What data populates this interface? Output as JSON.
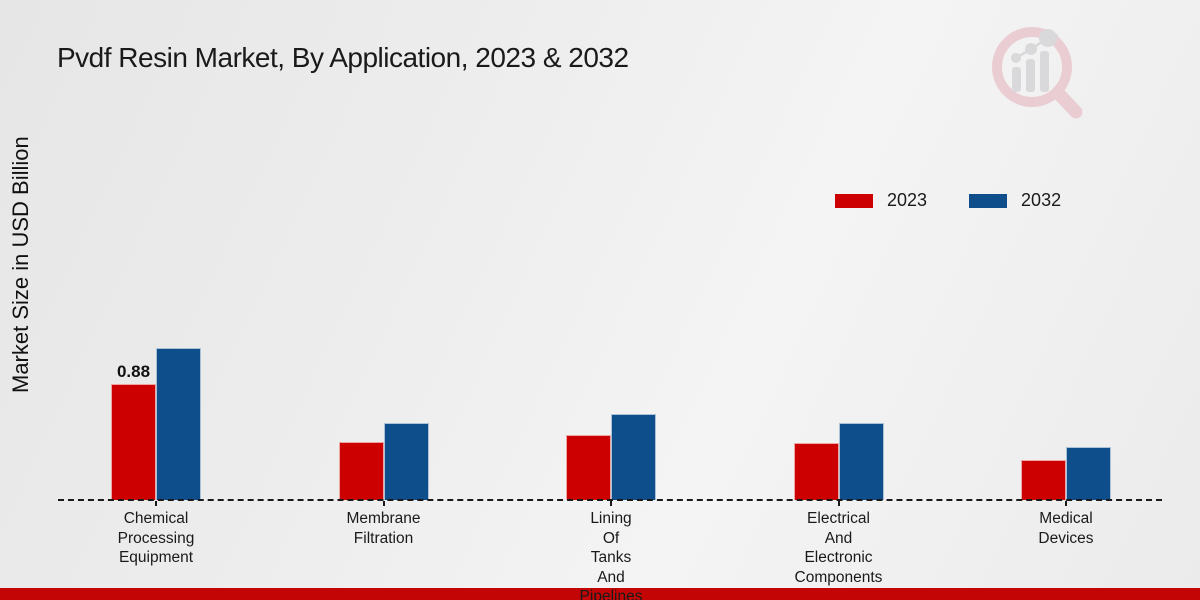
{
  "title": "Pvdf Resin Market, By Application, 2023 & 2032",
  "y_axis_label": "Market Size in USD Billion",
  "colors": {
    "series_2023": "#cc0000",
    "series_2032": "#0d4e8b",
    "footer_band": "#c30505",
    "baseline": "#1a1a1a",
    "watermark_ring": "#e9cdd2",
    "watermark_bars": "#d9d9dc"
  },
  "legend": {
    "items": [
      {
        "label": "2023",
        "color": "#cc0000"
      },
      {
        "label": "2032",
        "color": "#0d4e8b"
      }
    ]
  },
  "icons": {
    "logo_watermark": "magnifier-bar-chart-logo"
  },
  "chart_data": {
    "type": "bar",
    "title": "Pvdf Resin Market, By Application, 2023 & 2032",
    "xlabel": "",
    "ylabel": "Market Size in USD Billion",
    "categories": [
      "Chemical Processing Equipment",
      "Membrane Filtration",
      "Lining Of Tanks And Pipelines",
      "Electrical And Electronic Components",
      "Medical Devices"
    ],
    "category_label_lines": [
      [
        "Chemical",
        "Processing",
        "Equipment"
      ],
      [
        "Membrane",
        "Filtration"
      ],
      [
        "Lining",
        "Of",
        "Tanks",
        "And",
        "Pipelines"
      ],
      [
        "Electrical",
        "And",
        "Electronic",
        "Components"
      ],
      [
        "Medical",
        "Devices"
      ]
    ],
    "series": [
      {
        "name": "2023",
        "color": "#cc0000",
        "values": [
          0.88,
          0.44,
          0.49,
          0.43,
          0.3
        ]
      },
      {
        "name": "2032",
        "color": "#0d4e8b",
        "values": [
          1.15,
          0.58,
          0.65,
          0.58,
          0.4
        ]
      }
    ],
    "data_labels": [
      {
        "series": "2023",
        "category_index": 0,
        "text": "0.88"
      }
    ],
    "ylim": [
      0,
      1.3
    ],
    "y_ticks_visible": false,
    "grid": false,
    "legend_position": "upper-right",
    "baseline_style": "dashed"
  }
}
